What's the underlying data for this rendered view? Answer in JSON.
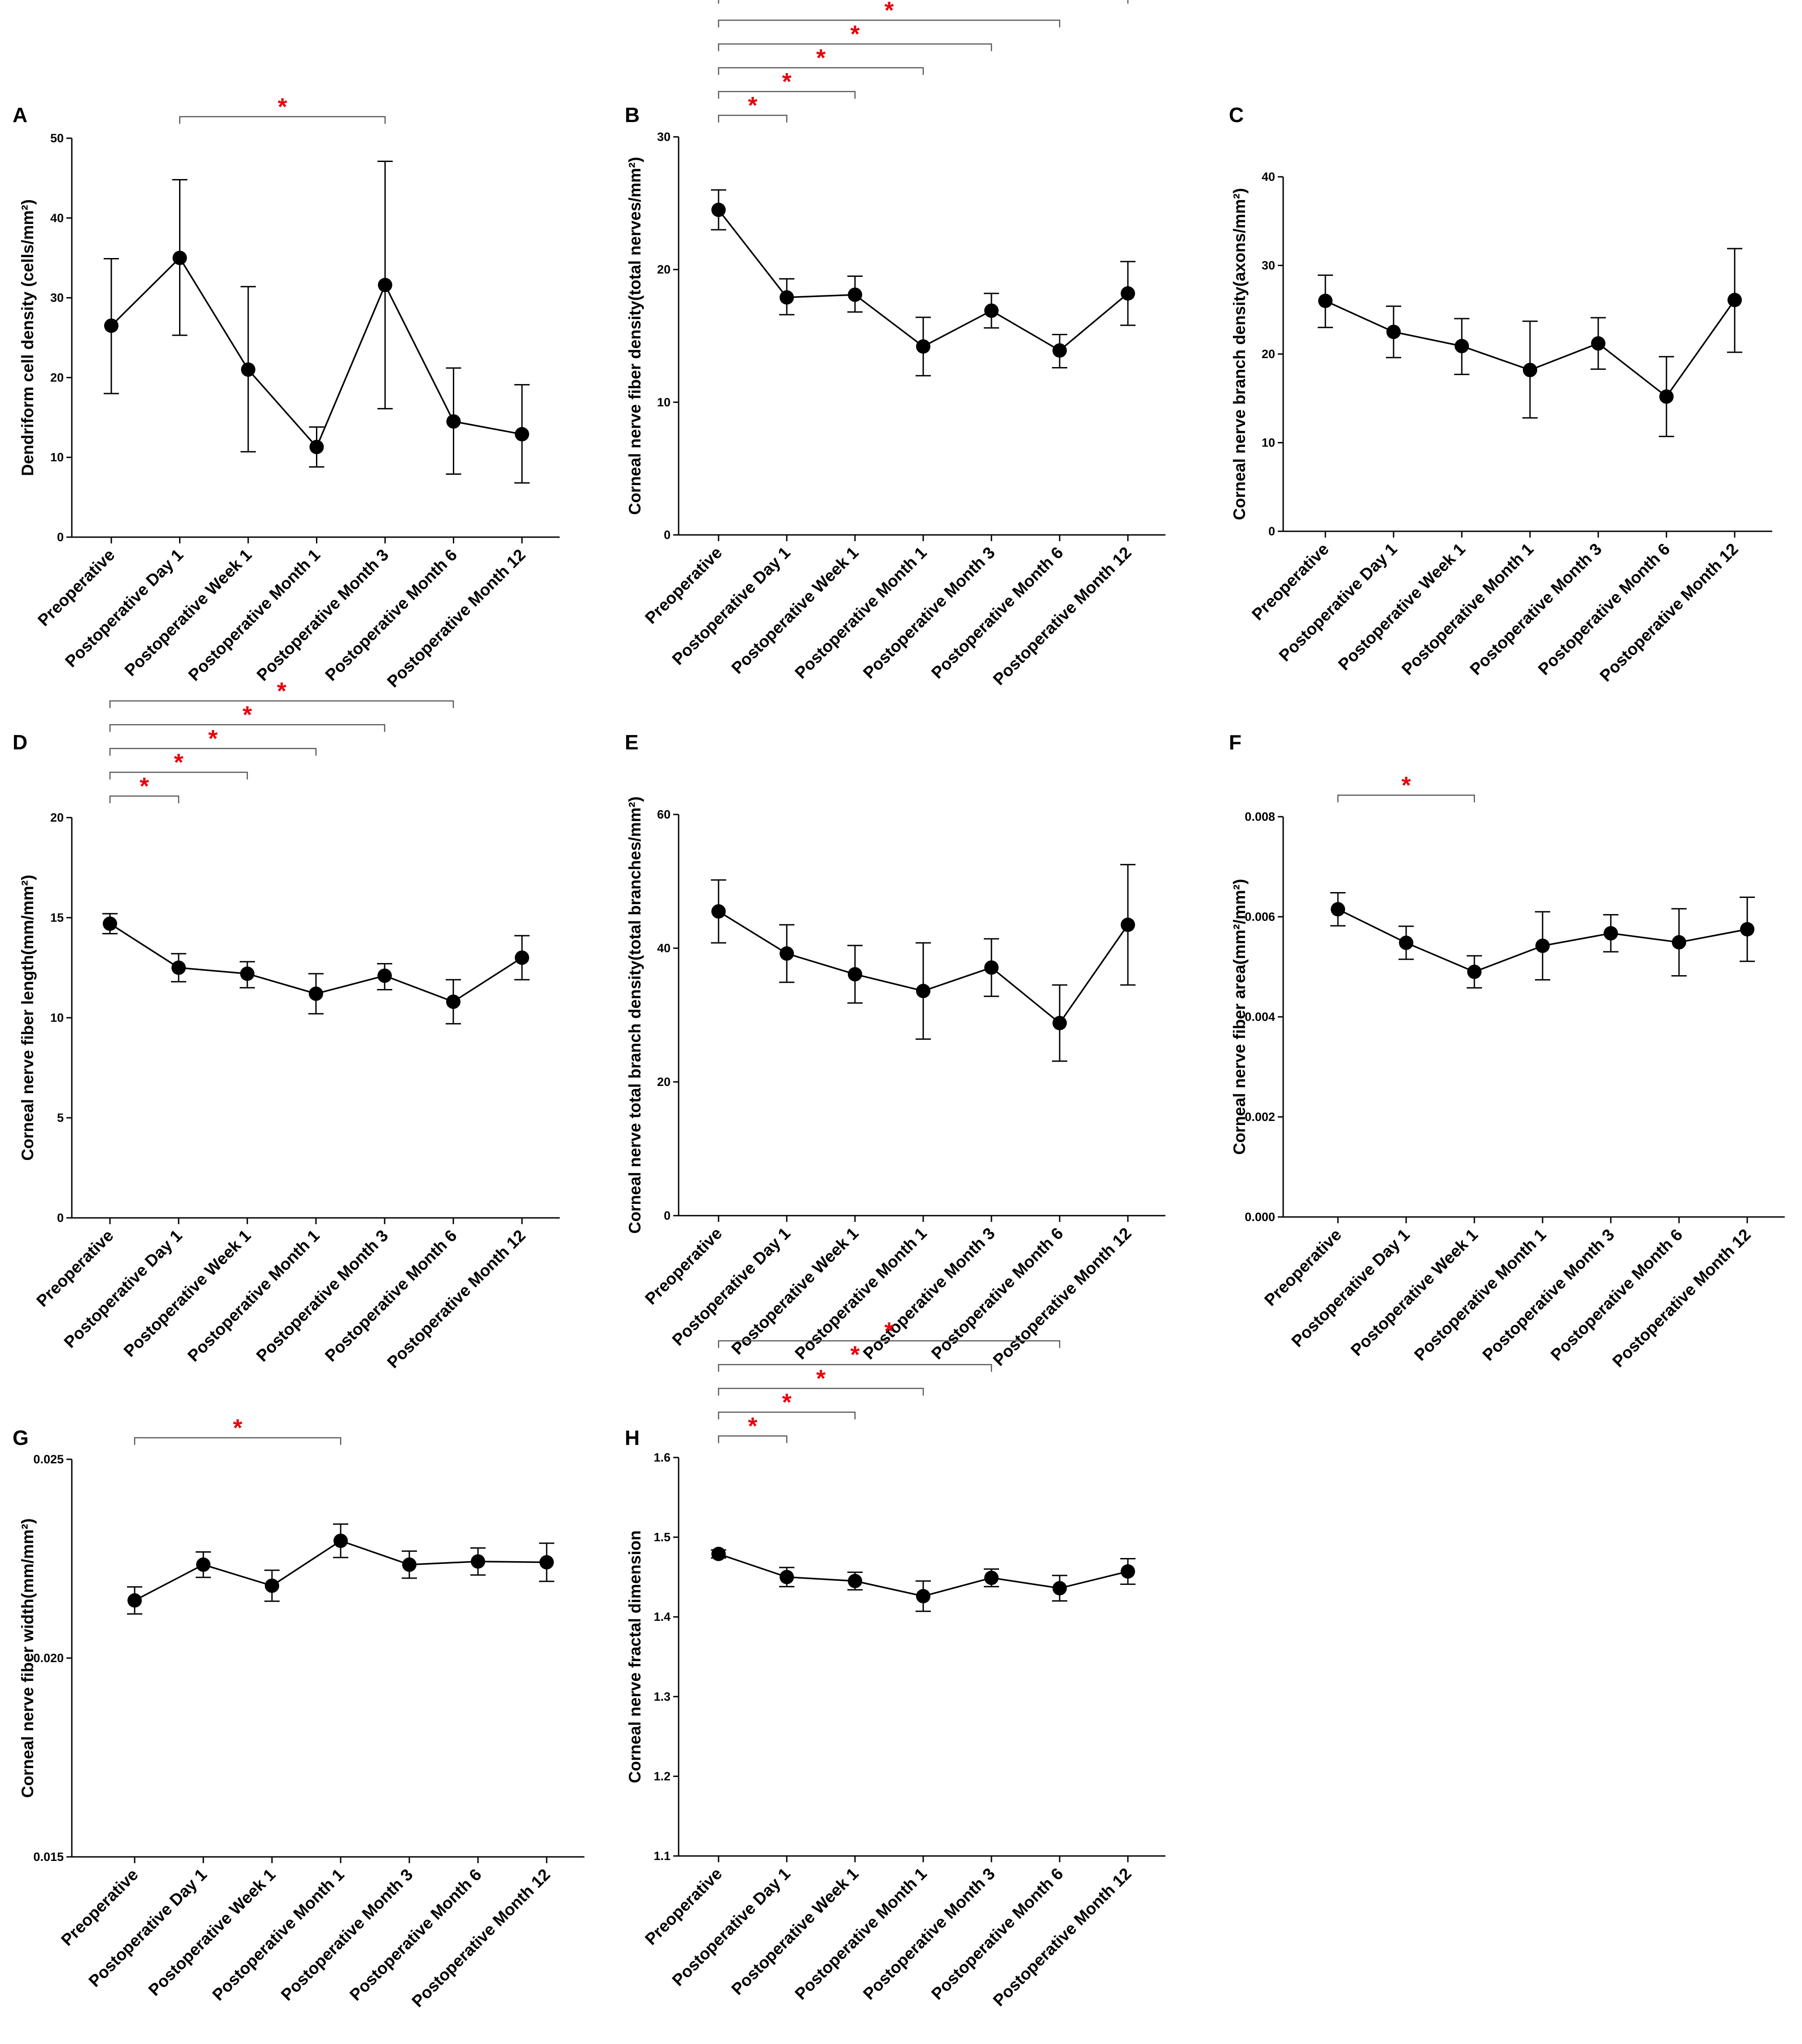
{
  "chart_data": [
    {
      "panel": "A",
      "type": "line",
      "ylabel": "Dendriform cell density (cells/mm²)",
      "categories": [
        "Preoperative",
        "Postoperative Day 1",
        "Postoperative Week 1",
        "Postoperative Month 1",
        "Postoperative Month 3",
        "Postoperative Month 6",
        "Postoperative Month 12"
      ],
      "ylim": [
        0,
        50
      ],
      "yticks": [
        "0",
        "10",
        "20",
        "30",
        "40",
        "50"
      ],
      "values": [
        26.5,
        35.0,
        21.0,
        11.3,
        31.6,
        14.5,
        12.9
      ],
      "error_low": [
        18.0,
        25.3,
        10.7,
        8.8,
        16.1,
        7.9,
        6.8
      ],
      "error_high": [
        34.9,
        44.8,
        31.4,
        13.8,
        47.1,
        21.2,
        19.1
      ],
      "significance": [
        {
          "from": 1,
          "to": 4,
          "label": "*"
        }
      ]
    },
    {
      "panel": "B",
      "type": "line",
      "ylabel": "Corneal nerve fiber density(total nerves/mm²)",
      "categories": [
        "Preoperative",
        "Postoperative Day 1",
        "Postoperative Week 1",
        "Postoperative Month 1",
        "Postoperative Month 3",
        "Postoperative Month 6",
        "Postoperative Month 12"
      ],
      "ylim": [
        0,
        30
      ],
      "yticks": [
        "0",
        "10",
        "20",
        "30"
      ],
      "values": [
        24.5,
        17.9,
        18.1,
        14.2,
        16.9,
        13.9,
        18.2
      ],
      "error_low": [
        23.0,
        16.6,
        16.8,
        12.0,
        15.6,
        12.6,
        15.8
      ],
      "error_high": [
        26.0,
        19.3,
        19.5,
        16.4,
        18.2,
        15.1,
        20.6
      ],
      "significance": [
        {
          "from": 0,
          "to": 1,
          "label": "*"
        },
        {
          "from": 0,
          "to": 2,
          "label": "*"
        },
        {
          "from": 0,
          "to": 3,
          "label": "*"
        },
        {
          "from": 0,
          "to": 4,
          "label": "*"
        },
        {
          "from": 0,
          "to": 5,
          "label": "*"
        },
        {
          "from": 0,
          "to": 6,
          "label": "*"
        }
      ]
    },
    {
      "panel": "C",
      "type": "line",
      "ylabel": "Corneal nerve branch density(axons/mm²)",
      "categories": [
        "Preoperative",
        "Postoperative Day 1",
        "Postoperative Week 1",
        "Postoperative Month 1",
        "Postoperative Month 3",
        "Postoperative Month 6",
        "Postoperative Month 12"
      ],
      "ylim": [
        0,
        40
      ],
      "yticks": [
        "0",
        "10",
        "20",
        "30",
        "40"
      ],
      "values": [
        26.0,
        22.5,
        20.9,
        18.2,
        21.2,
        15.2,
        26.1
      ],
      "error_low": [
        23.0,
        19.6,
        17.7,
        12.8,
        18.3,
        10.7,
        20.2
      ],
      "error_high": [
        28.9,
        25.4,
        24.0,
        23.7,
        24.1,
        19.7,
        31.9
      ],
      "significance": []
    },
    {
      "panel": "D",
      "type": "line",
      "ylabel": "Corneal nerve fiber length(mm/mm²)",
      "categories": [
        "Preoperative",
        "Postoperative Day 1",
        "Postoperative Week 1",
        "Postoperative Month 1",
        "Postoperative Month 3",
        "Postoperative Month 6",
        "Postoperative Month 12"
      ],
      "ylim": [
        0,
        20
      ],
      "yticks": [
        "0",
        "5",
        "10",
        "15",
        "20"
      ],
      "values": [
        14.7,
        12.5,
        12.2,
        11.2,
        12.1,
        10.8,
        13.0
      ],
      "error_low": [
        14.2,
        11.8,
        11.5,
        10.2,
        11.4,
        9.7,
        11.9
      ],
      "error_high": [
        15.2,
        13.2,
        12.8,
        12.2,
        12.7,
        11.9,
        14.1
      ],
      "significance": [
        {
          "from": 0,
          "to": 1,
          "label": "*"
        },
        {
          "from": 0,
          "to": 2,
          "label": "*"
        },
        {
          "from": 0,
          "to": 3,
          "label": "*"
        },
        {
          "from": 0,
          "to": 4,
          "label": "*"
        },
        {
          "from": 0,
          "to": 5,
          "label": "*"
        }
      ]
    },
    {
      "panel": "E",
      "type": "line",
      "ylabel": "Corneal nerve total branch density(total branches/mm²)",
      "categories": [
        "Preoperative",
        "Postoperative Day 1",
        "Postoperative Week 1",
        "Postoperative Month 1",
        "Postoperative Month 3",
        "Postoperative Month 6",
        "Postoperative Month 12"
      ],
      "ylim": [
        0,
        60
      ],
      "yticks": [
        "0",
        "20",
        "40",
        "60"
      ],
      "values": [
        45.5,
        39.2,
        36.1,
        33.6,
        37.1,
        28.8,
        43.5
      ],
      "error_low": [
        40.8,
        34.9,
        31.8,
        26.4,
        32.8,
        23.1,
        34.5
      ],
      "error_high": [
        50.2,
        43.5,
        40.4,
        40.8,
        41.4,
        34.5,
        52.5
      ],
      "significance": []
    },
    {
      "panel": "F",
      "type": "line",
      "ylabel": "Corneal nerve fiber area(mm²/mm²)",
      "categories": [
        "Preoperative",
        "Postoperative Day 1",
        "Postoperative Week 1",
        "Postoperative Month 1",
        "Postoperative Month 3",
        "Postoperative Month 6",
        "Postoperative Month 12"
      ],
      "ylim": [
        0,
        0.008
      ],
      "yticks": [
        "0.000",
        "0.002",
        "0.004",
        "0.006",
        "0.008"
      ],
      "values": [
        0.00615,
        0.00548,
        0.0049,
        0.00542,
        0.00567,
        0.00549,
        0.00575
      ],
      "error_low": [
        0.00582,
        0.00515,
        0.00458,
        0.00474,
        0.0053,
        0.00482,
        0.00511
      ],
      "error_high": [
        0.00648,
        0.00581,
        0.00522,
        0.0061,
        0.00604,
        0.00616,
        0.00639
      ],
      "significance": [
        {
          "from": 0,
          "to": 2,
          "label": "*"
        }
      ]
    },
    {
      "panel": "G",
      "type": "line",
      "ylabel": "Corneal nerve fiber width(mm/mm²)",
      "categories": [
        "Preoperative",
        "Postoperative Day 1",
        "Postoperative Week 1",
        "Postoperative Month 1",
        "Postoperative Month 3",
        "Postoperative Month 6",
        "Postoperative Month 12"
      ],
      "ylim": [
        0.015,
        0.025
      ],
      "yticks": [
        "0.015",
        "0.020",
        "0.025"
      ],
      "values": [
        0.02145,
        0.02235,
        0.02182,
        0.02295,
        0.02235,
        0.02243,
        0.02241
      ],
      "error_low": [
        0.02111,
        0.02203,
        0.02143,
        0.02253,
        0.02201,
        0.02209,
        0.02193
      ],
      "error_high": [
        0.02179,
        0.02267,
        0.02221,
        0.02337,
        0.02269,
        0.02277,
        0.02289
      ],
      "significance": [
        {
          "from": 0,
          "to": 3,
          "label": "*"
        }
      ]
    },
    {
      "panel": "H",
      "type": "line",
      "ylabel": "Corneal nerve fractal dimension",
      "categories": [
        "Preoperative",
        "Postoperative Day 1",
        "Postoperative Week 1",
        "Postoperative Month 1",
        "Postoperative Month 3",
        "Postoperative Month 6",
        "Postoperative Month 12"
      ],
      "ylim": [
        1.1,
        1.6
      ],
      "yticks": [
        "1.1",
        "1.2",
        "1.3",
        "1.4",
        "1.5",
        "1.6"
      ],
      "values": [
        1.479,
        1.45,
        1.445,
        1.426,
        1.449,
        1.436,
        1.457
      ],
      "error_low": [
        1.474,
        1.438,
        1.434,
        1.407,
        1.438,
        1.42,
        1.441
      ],
      "error_high": [
        1.484,
        1.462,
        1.456,
        1.445,
        1.46,
        1.452,
        1.473
      ],
      "significance": [
        {
          "from": 0,
          "to": 1,
          "label": "*"
        },
        {
          "from": 0,
          "to": 2,
          "label": "*"
        },
        {
          "from": 0,
          "to": 3,
          "label": "*"
        },
        {
          "from": 0,
          "to": 4,
          "label": "*"
        },
        {
          "from": 0,
          "to": 5,
          "label": "*"
        }
      ]
    }
  ]
}
